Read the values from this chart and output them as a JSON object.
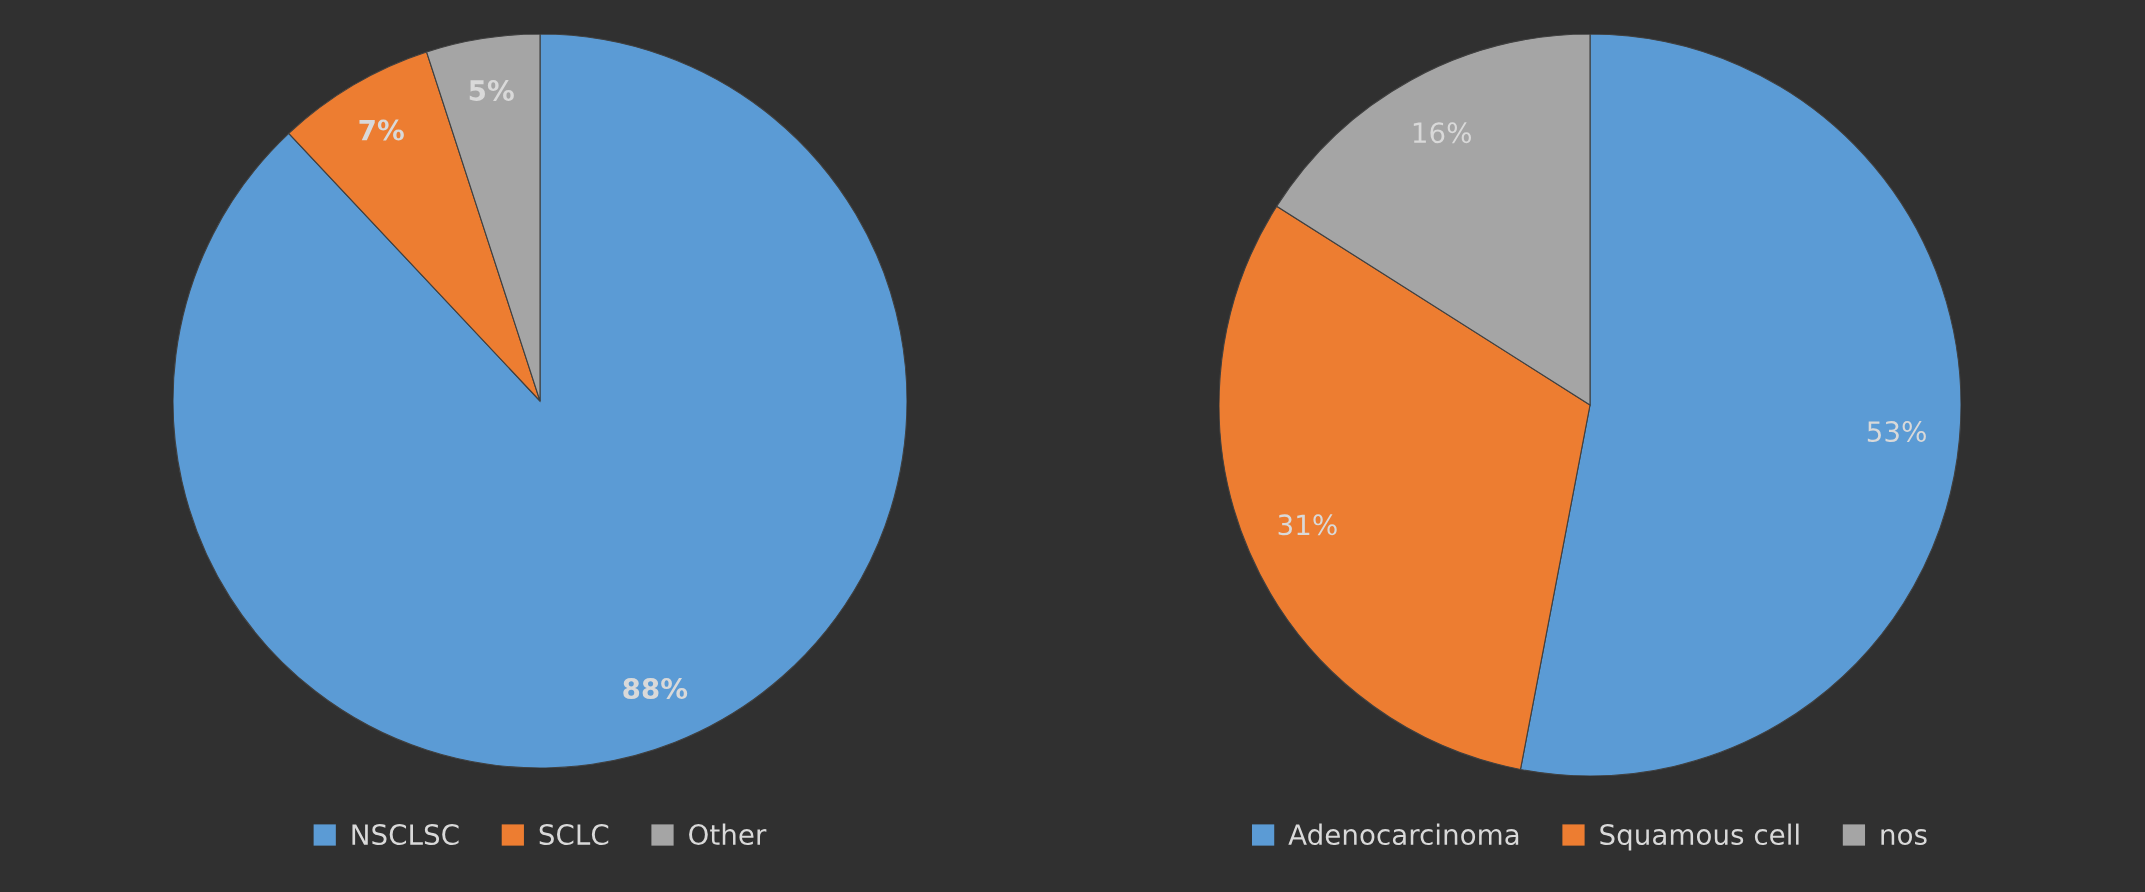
{
  "chart_data": [
    {
      "type": "pie",
      "categories": [
        "NSCLSC",
        "SCLC",
        "Other"
      ],
      "values": [
        88,
        7,
        5
      ],
      "colors": [
        "#5b9bd5",
        "#ed7d31",
        "#a5a5a5"
      ],
      "value_labels": [
        "88%",
        "7%",
        "5%"
      ],
      "legend": "bottom"
    },
    {
      "type": "pie",
      "categories": [
        "Adenocarcinoma",
        "Squamous cell",
        "nos"
      ],
      "values": [
        53,
        31,
        16
      ],
      "colors": [
        "#5b9bd5",
        "#ed7d31",
        "#a5a5a5"
      ],
      "value_labels": [
        "53%",
        "31%",
        "16%"
      ],
      "legend": "bottom"
    }
  ]
}
